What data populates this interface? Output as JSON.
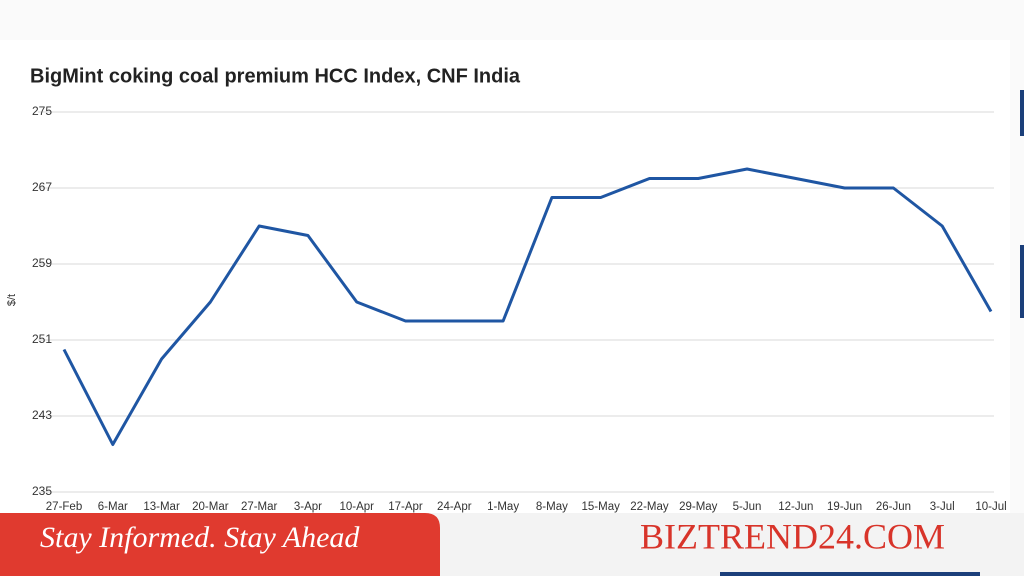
{
  "chart_data": {
    "type": "line",
    "title": "BigMint coking coal premium HCC Index, CNF India",
    "y_label": "$/t",
    "categories": [
      "27-Feb",
      "6-Mar",
      "13-Mar",
      "20-Mar",
      "27-Mar",
      "3-Apr",
      "10-Apr",
      "17-Apr",
      "24-Apr",
      "1-May",
      "8-May",
      "15-May",
      "22-May",
      "29-May",
      "5-Jun",
      "12-Jun",
      "19-Jun",
      "26-Jun",
      "3-Jul",
      "10-Jul"
    ],
    "series": [
      {
        "color": "#1f56a3",
        "values": [
          250,
          240,
          249,
          255,
          263,
          262,
          255,
          253,
          253,
          253,
          266,
          266,
          268,
          268,
          269,
          268,
          267,
          267,
          263,
          254
        ]
      }
    ],
    "ylim": [
      235,
      275
    ],
    "yticks": [
      235,
      243,
      251,
      259,
      267,
      275
    ],
    "grid": true
  },
  "banner": {
    "tagline": "Stay Informed. Stay Ahead",
    "brand": "BIZTREND24.COM"
  }
}
